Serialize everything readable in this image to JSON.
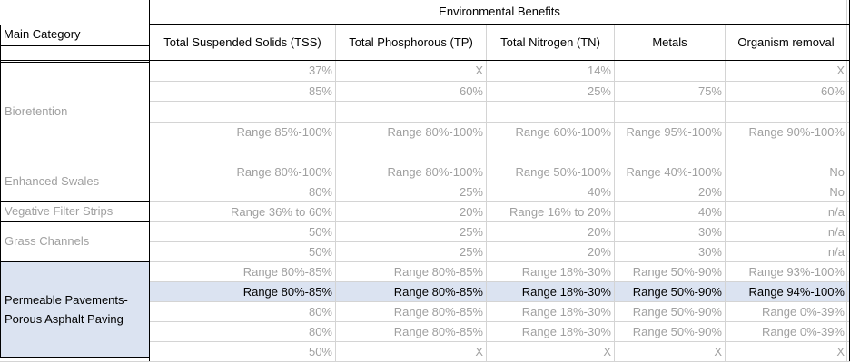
{
  "header": {
    "group_title": "Environmental Benefits",
    "main_category_label": "Main Category",
    "columns": [
      "Total Suspended Solids (TSS)",
      "Total Phosphorous (TP)",
      "Total Nitrogen (TN)",
      "Metals",
      "Organism removal"
    ]
  },
  "categories": {
    "bioretention": "Bioretention",
    "enhanced_swales": "Enhanced Swales",
    "vegetative_filter_strips": "Vegative Filter Strips",
    "grass_channels": "Grass Channels",
    "permeable_line1": "Permeable Pavements-",
    "permeable_line2": "Porous Asphalt Paving"
  },
  "rows": [
    [
      "37%",
      "X",
      "14%",
      "",
      "X"
    ],
    [
      "85%",
      "60%",
      "25%",
      "75%",
      "60%"
    ],
    [
      "",
      "",
      "",
      "",
      ""
    ],
    [
      "",
      "",
      "",
      "",
      ""
    ],
    [
      "Range 85%-100%",
      "Range 80%-100%",
      "Range 60%-100%",
      "Range 95%-100%",
      "Range 90%-100%"
    ],
    [
      "",
      "",
      "",
      "",
      ""
    ],
    [
      "Range 80%-100%",
      "Range 80%-100%",
      "Range 50%-100%",
      "Range 40%-100%",
      "No"
    ],
    [
      "80%",
      "25%",
      "40%",
      "20%",
      "No"
    ],
    [
      "Range 36% to 60%",
      "20%",
      "Range 16% to 20%",
      "40%",
      "n/a"
    ],
    [
      "50%",
      "25%",
      "20%",
      "30%",
      "n/a"
    ],
    [
      "50%",
      "25%",
      "20%",
      "30%",
      "n/a"
    ],
    [
      "Range 80%-85%",
      "Range 80%-85%",
      "Range 18%-30%",
      "Range 50%-90%",
      "Range 93%-100%"
    ],
    [
      "Range 80%-85%",
      "Range 80%-85%",
      "Range 18%-30%",
      "Range 50%-90%",
      "Range 94%-100%"
    ],
    [
      "80%",
      "Range 80%-85%",
      "Range 18%-30%",
      "Range 50%-90%",
      "Range 0%-39%"
    ],
    [
      "80%",
      "Range 80%-85%",
      "Range 18%-30%",
      "Range 50%-90%",
      "Range 0%-39%"
    ],
    [
      "50%",
      "X",
      "X",
      "X",
      "X"
    ]
  ],
  "colors": {
    "selection_fill": "#dbe3f1",
    "faded_text": "#a0a0a0",
    "gridline": "#d4d4d4"
  }
}
